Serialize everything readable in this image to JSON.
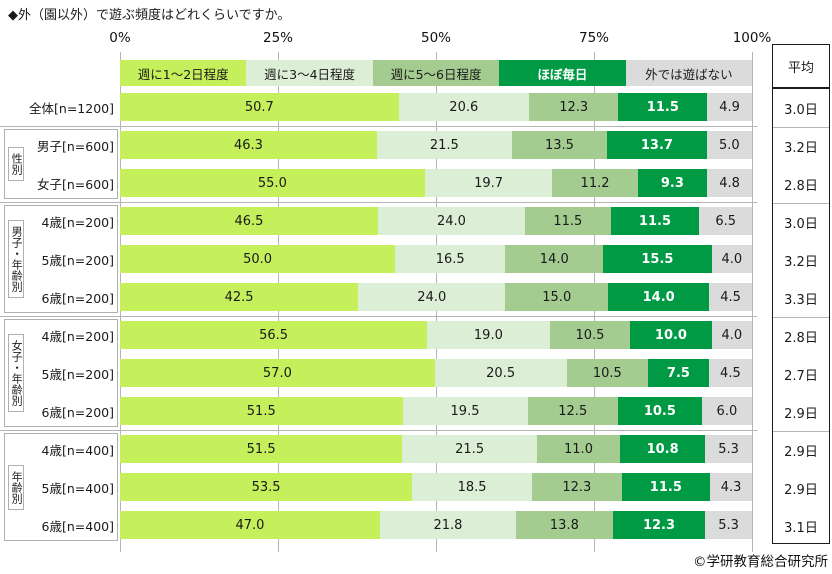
{
  "title": "◆外（園以外）で遊ぶ頻度はどれくらいですか。",
  "average_header": "平均",
  "footer": {
    "copyright": "©学研教育総合研究所"
  },
  "chart_data": {
    "type": "bar",
    "orientation": "horizontal",
    "stacked": true,
    "value_unit": "%",
    "x_range": [
      0,
      100
    ],
    "x_ticks": [
      "0%",
      "25%",
      "50%",
      "75%",
      "100%"
    ],
    "grid": true,
    "legend_position": "top",
    "legend": [
      {
        "label": "週に1～2日程度",
        "color": "#c5f05b",
        "text_color": "#1a1a1a",
        "bold": false
      },
      {
        "label": "週に3～4日程度",
        "color": "#ddeed6",
        "text_color": "#1a1a1a",
        "bold": false
      },
      {
        "label": "週に5～6日程度",
        "color": "#a4cc90",
        "text_color": "#1a1a1a",
        "bold": false
      },
      {
        "label": "ほぼ毎日",
        "color": "#009944",
        "text_color": "#ffffff",
        "bold": true
      },
      {
        "label": "外では遊ばない",
        "color": "#dbdbdb",
        "text_color": "#1a1a1a",
        "bold": false
      }
    ],
    "average_column_header": "平均",
    "groups": [
      {
        "name": "",
        "rows": [
          {
            "label": "全体[n=1200]",
            "values": [
              50.7,
              20.6,
              12.3,
              11.5,
              4.9
            ],
            "average": "3.0日"
          }
        ]
      },
      {
        "name": "性別",
        "rows": [
          {
            "label": "男子[n=600]",
            "values": [
              46.3,
              21.5,
              13.5,
              13.7,
              5.0
            ],
            "average": "3.2日"
          },
          {
            "label": "女子[n=600]",
            "values": [
              55.0,
              19.7,
              11.2,
              9.3,
              4.8
            ],
            "average": "2.8日"
          }
        ]
      },
      {
        "name": "男子・年齢別",
        "rows": [
          {
            "label": "4歳[n=200]",
            "values": [
              46.5,
              24.0,
              11.5,
              11.5,
              6.5
            ],
            "average": "3.0日"
          },
          {
            "label": "5歳[n=200]",
            "values": [
              50.0,
              16.5,
              14.0,
              15.5,
              4.0
            ],
            "average": "3.2日"
          },
          {
            "label": "6歳[n=200]",
            "values": [
              42.5,
              24.0,
              15.0,
              14.0,
              4.5
            ],
            "average": "3.3日"
          }
        ]
      },
      {
        "name": "女子・年齢別",
        "rows": [
          {
            "label": "4歳[n=200]",
            "values": [
              56.5,
              19.0,
              10.5,
              10.0,
              4.0
            ],
            "average": "2.8日"
          },
          {
            "label": "5歳[n=200]",
            "values": [
              57.0,
              20.5,
              10.5,
              7.5,
              4.5
            ],
            "average": "2.7日"
          },
          {
            "label": "6歳[n=200]",
            "values": [
              51.5,
              19.5,
              12.5,
              10.5,
              6.0
            ],
            "average": "2.9日"
          }
        ]
      },
      {
        "name": "年齢別",
        "rows": [
          {
            "label": "4歳[n=400]",
            "values": [
              51.5,
              21.5,
              11.0,
              10.8,
              5.3
            ],
            "average": "2.9日"
          },
          {
            "label": "5歳[n=400]",
            "values": [
              53.5,
              18.5,
              12.3,
              11.5,
              4.3
            ],
            "average": "2.9日"
          },
          {
            "label": "6歳[n=400]",
            "values": [
              47.0,
              21.8,
              13.8,
              12.3,
              5.3
            ],
            "average": "3.1日"
          }
        ]
      }
    ]
  }
}
